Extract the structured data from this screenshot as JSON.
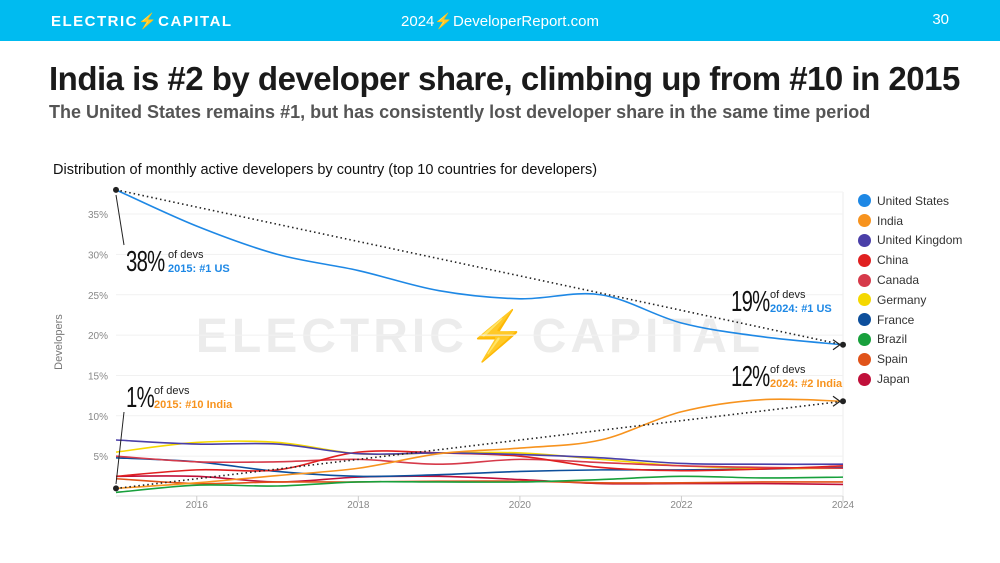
{
  "header": {
    "logo": "ELECTRIC⚡CAPITAL",
    "site": "2024⚡DeveloperReport.com",
    "page_number": "30",
    "color": "#00bbf0"
  },
  "title": "India is #2 by developer share, climbing up from #10 in 2015",
  "subtitle": "The United States remains #1, but has consistently lost developer share in the same time period",
  "watermark": "ELECTRIC⚡CAPITAL",
  "annotations": [
    {
      "big": "38%",
      "small": "of devs",
      "label": "2015: #1 US",
      "color": "#1e88e5"
    },
    {
      "big": "1%",
      "small": "of devs",
      "label": "2015: #10 India",
      "color": "#f7931e"
    },
    {
      "big": "19%",
      "small": "of devs",
      "label": "2024: #1 US",
      "color": "#1e88e5"
    },
    {
      "big": "12%",
      "small": "of devs",
      "label": "2024: #2 India",
      "color": "#f7931e"
    }
  ],
  "chart_data": {
    "type": "line",
    "title": "Distribution of monthly active developers by country (top 10 countries for developers)",
    "xlabel": "",
    "ylabel": "Developers",
    "x": [
      2015,
      2016,
      2017,
      2018,
      2019,
      2020,
      2021,
      2022,
      2023,
      2024
    ],
    "xticks": [
      "2016",
      "2018",
      "2020",
      "2022",
      "2024"
    ],
    "yticks": [
      "5%",
      "10%",
      "15%",
      "20%",
      "25%",
      "30%",
      "35%"
    ],
    "ylim": [
      0,
      38
    ],
    "grid": true,
    "legend": "right",
    "series": [
      {
        "name": "United States",
        "color": "#1e88e5",
        "values": [
          38,
          33.5,
          30,
          28,
          25.5,
          24.5,
          25,
          21.5,
          19.8,
          18.8
        ]
      },
      {
        "name": "India",
        "color": "#f7931e",
        "values": [
          1,
          1.7,
          2.6,
          3.5,
          5.3,
          6,
          7,
          10.5,
          12,
          11.8
        ]
      },
      {
        "name": "United Kingdom",
        "color": "#4a3fa8",
        "values": [
          7,
          6.5,
          6.5,
          5.3,
          5.4,
          5.2,
          4.8,
          4.1,
          4,
          4
        ]
      },
      {
        "name": "China",
        "color": "#e02020",
        "values": [
          2.5,
          3.3,
          3.3,
          5.5,
          5.4,
          5,
          3.6,
          3.2,
          3.4,
          3.8
        ]
      },
      {
        "name": "Canada",
        "color": "#d63a4a",
        "values": [
          5,
          4.3,
          4.3,
          4.6,
          4,
          4.6,
          4.2,
          3.8,
          3.6,
          3.5
        ]
      },
      {
        "name": "Germany",
        "color": "#f5d800",
        "values": [
          5.5,
          6.7,
          6.7,
          5.3,
          5.4,
          5.4,
          4.6,
          3.8,
          3.5,
          3.5
        ]
      },
      {
        "name": "France",
        "color": "#0d4f9c",
        "values": [
          4.8,
          4.3,
          3.1,
          2.5,
          2.7,
          3.1,
          3.3,
          3.3,
          3.4,
          3.6
        ]
      },
      {
        "name": "Brazil",
        "color": "#18a03c",
        "values": [
          0.5,
          1.4,
          1.3,
          1.8,
          1.8,
          1.8,
          2.1,
          2.5,
          2.3,
          2.4
        ]
      },
      {
        "name": "Spain",
        "color": "#e0531a",
        "values": [
          2.2,
          1.6,
          1.8,
          1.8,
          1.9,
          1.9,
          1.7,
          1.7,
          1.8,
          1.8
        ]
      },
      {
        "name": "Japan",
        "color": "#c0103a",
        "values": [
          2.5,
          2.5,
          1.8,
          2.4,
          2.5,
          2.1,
          1.6,
          1.6,
          1.6,
          1.5
        ]
      }
    ],
    "trend_lines": [
      {
        "from": [
          2015,
          38
        ],
        "to": [
          2024,
          18.8
        ]
      },
      {
        "from": [
          2015,
          1
        ],
        "to": [
          2024,
          11.8
        ]
      }
    ]
  }
}
